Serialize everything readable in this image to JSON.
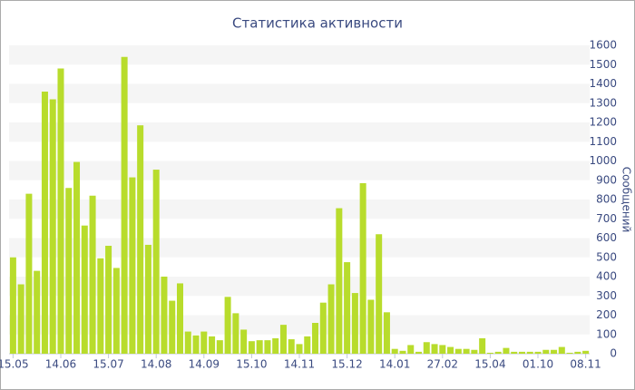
{
  "chart_data": {
    "type": "bar",
    "title": "Статистика активности",
    "y_label": "Сообщений",
    "categories": [
      "15.05",
      null,
      null,
      null,
      null,
      null,
      "14.06",
      null,
      null,
      null,
      null,
      null,
      "15.07",
      null,
      null,
      null,
      null,
      null,
      "14.08",
      null,
      null,
      null,
      null,
      null,
      "14.09",
      null,
      null,
      null,
      null,
      null,
      "15.10",
      null,
      null,
      null,
      null,
      null,
      "14.11",
      null,
      null,
      null,
      null,
      null,
      "15.12",
      null,
      null,
      null,
      null,
      null,
      "14.01",
      null,
      null,
      null,
      null,
      null,
      "27.02",
      null,
      null,
      null,
      null,
      null,
      "15.04",
      null,
      null,
      null,
      null,
      null,
      "01.10",
      null,
      null,
      null,
      null,
      null,
      "08.11"
    ],
    "values": [
      500,
      360,
      830,
      430,
      1360,
      1320,
      1480,
      860,
      995,
      665,
      820,
      495,
      560,
      445,
      1540,
      915,
      1185,
      565,
      955,
      400,
      275,
      365,
      115,
      95,
      115,
      90,
      70,
      295,
      210,
      125,
      65,
      70,
      70,
      80,
      150,
      75,
      50,
      90,
      160,
      265,
      360,
      755,
      475,
      315,
      885,
      280,
      620,
      215,
      25,
      15,
      45,
      10,
      60,
      50,
      45,
      35,
      25,
      25,
      20,
      80,
      5,
      10,
      30,
      10,
      10,
      10,
      10,
      20,
      20,
      35,
      5,
      10,
      15
    ],
    "color": "#b8dc2c",
    "ylim": [
      0,
      1600
    ],
    "yticks": [
      0,
      100,
      200,
      300,
      400,
      500,
      600,
      700,
      800,
      900,
      1000,
      1100,
      1200,
      1300,
      1400,
      1500,
      1600
    ],
    "grid": true
  }
}
